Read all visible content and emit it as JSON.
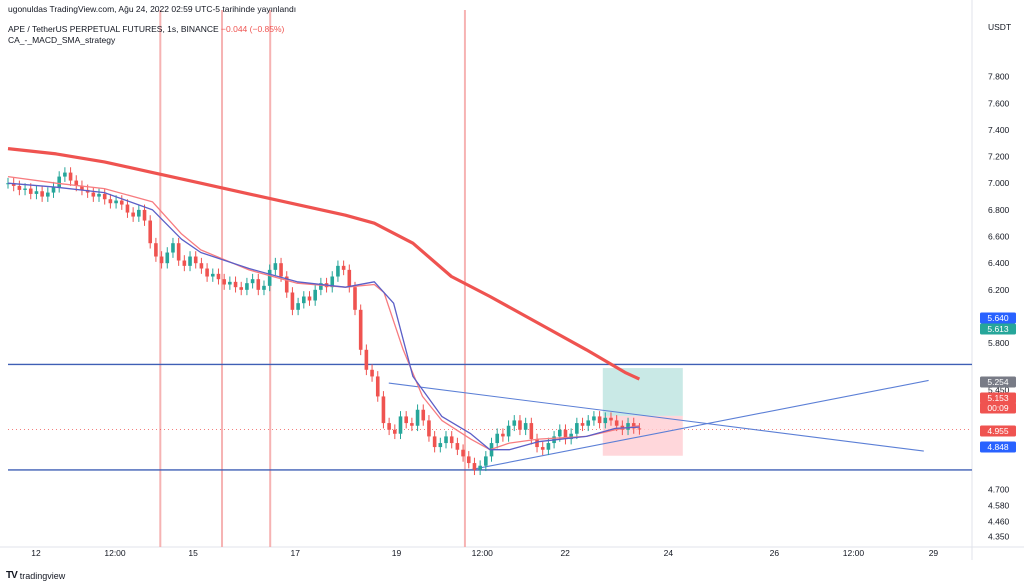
{
  "header": {
    "published": "ugonuldas TradingView.com, Ağu 24, 2022 02:59 UTC-5 tarihinde yayınlandı",
    "symbol_line": "APE / TetherUS PERPETUAL FUTURES, 1s, BINANCE",
    "change": "−0.044 (−0.85%)",
    "indicator": "CA_-_MACD_SMA_strategy"
  },
  "footer": {
    "brand": "tradingview",
    "logo_icon": "tradingview-logo-icon"
  },
  "chart_data": {
    "type": "line",
    "currency": "USDT",
    "ylim": [
      4.3,
      8.0
    ],
    "y_ticks": [
      "7.800",
      "7.600",
      "7.400",
      "7.200",
      "7.000",
      "6.800",
      "6.600",
      "6.400",
      "6.200",
      "6.000",
      "5.800",
      "5.450",
      "5.300",
      "5.000",
      "4.700",
      "4.580",
      "4.460",
      "4.350"
    ],
    "x_ticks": [
      "12",
      "12:00",
      "15",
      "17",
      "19",
      "12:00",
      "22",
      "24",
      "26",
      "12:00",
      "29"
    ],
    "price_badges": [
      {
        "label": "5.640",
        "color": "#2962ff"
      },
      {
        "label": "5.613",
        "color": "#26a69a"
      },
      {
        "label": "5.254",
        "color": "#787b86"
      },
      {
        "label": "5.153",
        "color": "#ef5350"
      },
      {
        "label": "00:09",
        "color": "#ef5350"
      },
      {
        "label": "4.955",
        "color": "#ef5350"
      },
      {
        "label": "4.848",
        "color": "#2962ff"
      }
    ],
    "horizontal_levels": [
      5.64,
      4.848
    ],
    "vertical_markers_x": [
      0.158,
      0.222,
      0.272,
      0.474
    ],
    "series": [
      {
        "role": "price",
        "color": "#ef5350",
        "values": [
          7.0,
          6.98,
          6.95,
          6.96,
          6.92,
          6.94,
          6.9,
          6.93,
          6.97,
          7.05,
          7.08,
          7.02,
          6.98,
          6.95,
          6.93,
          6.9,
          6.92,
          6.88,
          6.85,
          6.87,
          6.84,
          6.78,
          6.75,
          6.8,
          6.72,
          6.55,
          6.45,
          6.4,
          6.48,
          6.55,
          6.42,
          6.38,
          6.45,
          6.4,
          6.36,
          6.3,
          6.32,
          6.28,
          6.24,
          6.26,
          6.22,
          6.2,
          6.25,
          6.28,
          6.2,
          6.23,
          6.35,
          6.4,
          6.3,
          6.18,
          6.05,
          6.1,
          6.15,
          6.12,
          6.2,
          6.25,
          6.22,
          6.3,
          6.38,
          6.35,
          6.22,
          6.05,
          5.75,
          5.6,
          5.55,
          5.4,
          5.2,
          5.15,
          5.12,
          5.25,
          5.2,
          5.18,
          5.3,
          5.22,
          5.1,
          5.02,
          5.05,
          5.1,
          5.05,
          5.0,
          4.95,
          4.9,
          4.85,
          4.88,
          4.95,
          5.05,
          5.12,
          5.1,
          5.18,
          5.22,
          5.15,
          5.2,
          5.08,
          5.02,
          5.0,
          5.05,
          5.1,
          5.15,
          5.08,
          5.12,
          5.2,
          5.18,
          5.22,
          5.25,
          5.2,
          5.24,
          5.22,
          5.18,
          5.15,
          5.2,
          5.16,
          5.153
        ]
      },
      {
        "role": "sma-200",
        "color": "#ef5350",
        "values": [
          [
            0.0,
            7.26
          ],
          [
            0.05,
            7.22
          ],
          [
            0.1,
            7.16
          ],
          [
            0.15,
            7.08
          ],
          [
            0.2,
            7.0
          ],
          [
            0.25,
            6.92
          ],
          [
            0.3,
            6.84
          ],
          [
            0.35,
            6.76
          ],
          [
            0.38,
            6.7
          ],
          [
            0.42,
            6.55
          ],
          [
            0.46,
            6.3
          ],
          [
            0.5,
            6.15
          ],
          [
            0.55,
            5.95
          ],
          [
            0.6,
            5.75
          ],
          [
            0.64,
            5.58
          ],
          [
            0.655,
            5.53
          ]
        ]
      },
      {
        "role": "fast-ma",
        "color": "#f77c80",
        "values": [
          [
            0.0,
            7.05
          ],
          [
            0.05,
            7.0
          ],
          [
            0.1,
            6.96
          ],
          [
            0.15,
            6.86
          ],
          [
            0.18,
            6.62
          ],
          [
            0.2,
            6.5
          ],
          [
            0.25,
            6.35
          ],
          [
            0.3,
            6.25
          ],
          [
            0.35,
            6.22
          ],
          [
            0.38,
            6.24
          ],
          [
            0.39,
            6.18
          ],
          [
            0.41,
            5.75
          ],
          [
            0.43,
            5.4
          ],
          [
            0.45,
            5.22
          ],
          [
            0.48,
            5.08
          ],
          [
            0.5,
            5.0
          ],
          [
            0.52,
            5.05
          ],
          [
            0.55,
            5.08
          ],
          [
            0.6,
            5.1
          ],
          [
            0.63,
            5.15
          ],
          [
            0.655,
            5.18
          ]
        ]
      },
      {
        "role": "slow-ma",
        "color": "#5b5fc7",
        "values": [
          [
            0.0,
            7.0
          ],
          [
            0.05,
            6.97
          ],
          [
            0.1,
            6.93
          ],
          [
            0.15,
            6.8
          ],
          [
            0.18,
            6.58
          ],
          [
            0.2,
            6.48
          ],
          [
            0.25,
            6.36
          ],
          [
            0.3,
            6.26
          ],
          [
            0.35,
            6.22
          ],
          [
            0.38,
            6.26
          ],
          [
            0.4,
            6.1
          ],
          [
            0.42,
            5.55
          ],
          [
            0.45,
            5.25
          ],
          [
            0.48,
            5.12
          ],
          [
            0.5,
            5.0
          ],
          [
            0.52,
            5.0
          ],
          [
            0.55,
            5.06
          ],
          [
            0.6,
            5.1
          ],
          [
            0.63,
            5.16
          ],
          [
            0.655,
            5.17
          ]
        ]
      }
    ],
    "trendlines": [
      {
        "from": [
          0.395,
          5.5
        ],
        "to": [
          0.95,
          4.99
        ],
        "color": "#5b7fd6"
      },
      {
        "from": [
          0.48,
          4.85
        ],
        "to": [
          0.955,
          5.52
        ],
        "color": "#5b7fd6"
      }
    ],
    "position_box": {
      "x_start": 0.617,
      "x_end": 0.7,
      "profit_top": 5.613,
      "entry": 5.254,
      "stop": 4.955,
      "profit_color": "#b2dfdb",
      "loss_color": "#ffcdd2"
    }
  }
}
